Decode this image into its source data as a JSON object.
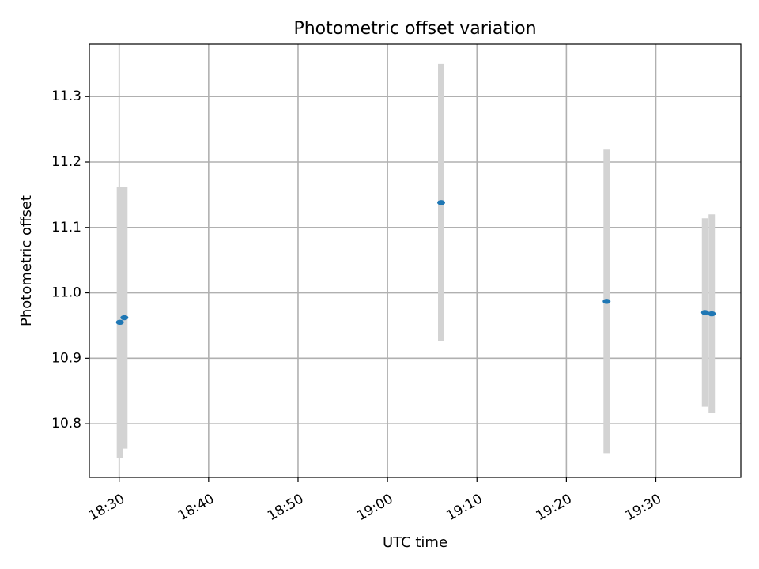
{
  "chart_data": {
    "type": "scatter",
    "title": "Photometric offset variation",
    "xlabel": "UTC time",
    "ylabel": "Photometric offset",
    "x_axis_kind": "time",
    "xlim": [
      "18:26:40",
      "19:39:30"
    ],
    "ylim": [
      10.718,
      11.38
    ],
    "x_ticks": [
      "18:30",
      "18:40",
      "18:50",
      "19:00",
      "19:10",
      "19:20",
      "19:30"
    ],
    "y_ticks": [
      10.8,
      10.9,
      11.0,
      11.1,
      11.2,
      11.3
    ],
    "y_tick_labels": [
      "10.8",
      "10.9",
      "11.0",
      "11.1",
      "11.2",
      "11.3"
    ],
    "grid": true,
    "series": [
      {
        "marker_color": "#1f77b4",
        "errorbar_color": "#d3d3d3",
        "points": [
          {
            "x": "18:30:05",
            "y": 10.955,
            "yerr": 0.207
          },
          {
            "x": "18:30:35",
            "y": 10.962,
            "yerr": 0.2
          },
          {
            "x": "19:06:00",
            "y": 11.138,
            "yerr": 0.212
          },
          {
            "x": "19:24:30",
            "y": 10.987,
            "yerr": 0.232
          },
          {
            "x": "19:35:30",
            "y": 10.97,
            "yerr": 0.144
          },
          {
            "x": "19:36:15",
            "y": 10.968,
            "yerr": 0.152
          }
        ]
      }
    ]
  }
}
